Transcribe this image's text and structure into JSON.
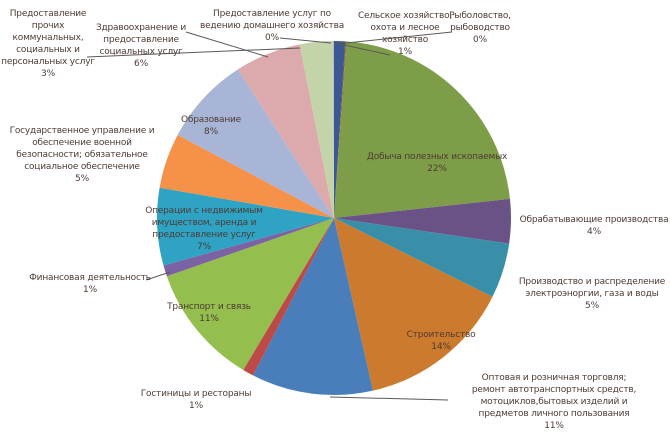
{
  "chart_data": {
    "type": "pie",
    "title": "",
    "legend": "none",
    "background": "#ffffff",
    "label_color": "#4e3b33",
    "leader_line_color": "#595959",
    "slices": [
      {
        "label": "Сельское хозяйство, охота и лесное хозяйство",
        "pct": "1%",
        "value": 1,
        "color": "#3a5894"
      },
      {
        "label": "Рыболовство, рыбоводство",
        "pct": "0%",
        "value": 0,
        "color": "#9e3b38"
      },
      {
        "label": "Добыча полезных ископаемых",
        "pct": "22%",
        "value": 22,
        "color": "#7e9d49"
      },
      {
        "label": "Обрабатывающие производства",
        "pct": "4%",
        "value": 4,
        "color": "#6a5186"
      },
      {
        "label": "Производство и распределение электроэноргии, газа и воды",
        "pct": "5%",
        "value": 5,
        "color": "#3a8fa8"
      },
      {
        "label": "Строительство",
        "pct": "14%",
        "value": 14,
        "color": "#cc7a2e"
      },
      {
        "label": "Оптовая и розничная торговля; ремонт автотранспортных средств, мотоциклов,бытовых изделий и предметов личного пользования",
        "pct": "11%",
        "value": 11,
        "color": "#4a7ebb"
      },
      {
        "label": "Гостиницы и рестораны",
        "pct": "1%",
        "value": 1,
        "color": "#bc4a47"
      },
      {
        "label": "Транспорт и связь",
        "pct": "11%",
        "value": 11,
        "color": "#94be4e"
      },
      {
        "label": "Финансовая деятельность",
        "pct": "1%",
        "value": 1,
        "color": "#7b62a2"
      },
      {
        "label": "Операции с недвижимым имуществом, аренда и предоставление услуг",
        "pct": "7%",
        "value": 7,
        "color": "#2ea3c4"
      },
      {
        "label": "Государственное управление и обеспечение военной безопасности; обязательное социальное обеспечение",
        "pct": "5%",
        "value": 5,
        "color": "#f69149"
      },
      {
        "label": "Образование",
        "pct": "8%",
        "value": 8,
        "color": "#a8b5d6"
      },
      {
        "label": "Здравоохранение и предоставление социальных услуг",
        "pct": "6%",
        "value": 6,
        "color": "#dca9ac"
      },
      {
        "label": "Предоставление прочих коммунальных, социальных и персональных услуг",
        "pct": "3%",
        "value": 3,
        "color": "#c3d5a8"
      },
      {
        "label": "Предоставление услуг по ведению домашнего хозяйства",
        "pct": "0%",
        "value": 0,
        "color": "#b8a8c8"
      }
    ]
  }
}
